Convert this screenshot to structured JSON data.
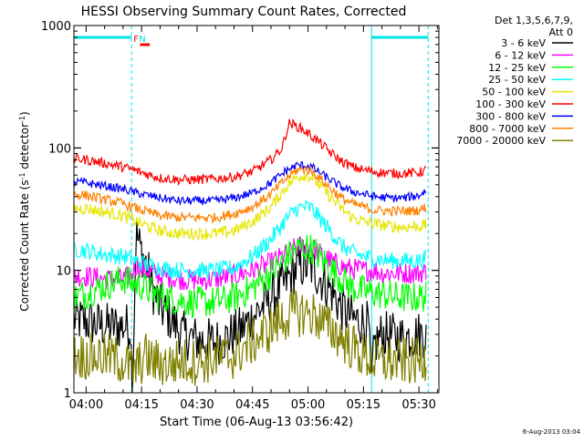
{
  "chart_data": {
    "type": "line",
    "title": "HESSI Observing Summary Count Rates, Corrected",
    "xlabel": "Start Time (06-Aug-13 03:56:42)",
    "ylabel_main": "Corrected Count Rate (s",
    "ylabel_sup1": "-1",
    "ylabel_mid": " detector",
    "ylabel_sup2": "-1",
    "ylabel_end": ")",
    "yscale": "log",
    "ylim": [
      1,
      1000
    ],
    "xlim_minutes": [
      236.7,
      335.4
    ],
    "x_ticks": [
      {
        "minutes": 240,
        "label": "04:00"
      },
      {
        "minutes": 255,
        "label": "04:15"
      },
      {
        "minutes": 270,
        "label": "04:30"
      },
      {
        "minutes": 285,
        "label": "04:45"
      },
      {
        "minutes": 300,
        "label": "05:00"
      },
      {
        "minutes": 315,
        "label": "05:15"
      },
      {
        "minutes": 330,
        "label": "05:30"
      }
    ],
    "y_ticks": [
      {
        "value": 1,
        "label": "1"
      },
      {
        "value": 10,
        "label": "10"
      },
      {
        "value": 100,
        "label": "100"
      },
      {
        "value": 1000,
        "label": "1000"
      }
    ],
    "legend_header": [
      "Det 1,3,5,6,7,9,",
      "Att 0"
    ],
    "legend_position": "right",
    "timestamp": "6-Aug-2013 03:04",
    "flags": {
      "night_intervals": [
        [
          236.7,
          252.3
        ],
        [
          317.2,
          332.5
        ]
      ],
      "flag_labels": [
        {
          "text": "F",
          "minutes": 253.5,
          "color": "#ff0000"
        },
        {
          "text": "N",
          "minutes": 255.2,
          "color": "#00e5e5"
        }
      ],
      "saa_bar": [
        254.6,
        257.2
      ]
    },
    "series": [
      {
        "name": "3 - 6 keV",
        "color": "#000000",
        "points": [
          [
            236.7,
            4
          ],
          [
            240,
            3.8
          ],
          [
            245,
            3.5
          ],
          [
            250,
            3.5
          ],
          [
            252,
            3.5
          ],
          [
            252.5,
            1
          ],
          [
            253.5,
            20
          ],
          [
            255,
            14
          ],
          [
            256,
            12
          ],
          [
            258,
            7
          ],
          [
            260,
            5
          ],
          [
            263,
            4
          ],
          [
            266,
            3
          ],
          [
            270,
            2.7
          ],
          [
            275,
            2.6
          ],
          [
            278,
            2.8
          ],
          [
            282,
            3.3
          ],
          [
            286,
            4.5
          ],
          [
            290,
            6
          ],
          [
            294,
            8
          ],
          [
            297,
            10.5
          ],
          [
            299,
            11
          ],
          [
            301,
            10.5
          ],
          [
            303,
            9
          ],
          [
            306,
            7
          ],
          [
            309,
            5
          ],
          [
            312,
            4
          ],
          [
            315,
            3.8
          ],
          [
            316.5,
            3.5
          ],
          [
            317,
            1
          ],
          [
            318,
            2.5
          ],
          [
            320,
            3
          ],
          [
            325,
            2.8
          ],
          [
            330,
            3
          ],
          [
            332,
            3
          ]
        ],
        "noise": 0.2
      },
      {
        "name": "6 - 12 keV",
        "color": "#ff00ff",
        "points": [
          [
            236.7,
            9
          ],
          [
            240,
            9
          ],
          [
            245,
            8.5
          ],
          [
            250,
            8.5
          ],
          [
            252,
            9
          ],
          [
            253.5,
            11
          ],
          [
            256,
            10
          ],
          [
            260,
            9
          ],
          [
            265,
            8.5
          ],
          [
            270,
            8.3
          ],
          [
            275,
            8.5
          ],
          [
            280,
            9
          ],
          [
            285,
            10
          ],
          [
            290,
            11.5
          ],
          [
            294,
            13.5
          ],
          [
            297,
            15.5
          ],
          [
            299,
            16
          ],
          [
            301,
            15.5
          ],
          [
            303,
            14
          ],
          [
            306,
            12
          ],
          [
            310,
            10.5
          ],
          [
            315,
            10
          ],
          [
            318,
            10
          ],
          [
            320,
            9.5
          ],
          [
            325,
            9.5
          ],
          [
            330,
            9.5
          ],
          [
            332,
            9.8
          ]
        ],
        "noise": 0.09
      },
      {
        "name": "12 - 25 keV",
        "color": "#00ff00",
        "points": [
          [
            236.7,
            6
          ],
          [
            240,
            6.5
          ],
          [
            245,
            7.5
          ],
          [
            250,
            8.5
          ],
          [
            252,
            8
          ],
          [
            255,
            7.5
          ],
          [
            258,
            6.5
          ],
          [
            262,
            6
          ],
          [
            266,
            5.6
          ],
          [
            270,
            5.5
          ],
          [
            275,
            5.5
          ],
          [
            280,
            6
          ],
          [
            285,
            7.2
          ],
          [
            290,
            9.5
          ],
          [
            294,
            12.5
          ],
          [
            297,
            15
          ],
          [
            299,
            15.5
          ],
          [
            301,
            15
          ],
          [
            303,
            13
          ],
          [
            306,
            10.5
          ],
          [
            309,
            8.5
          ],
          [
            312,
            7.2
          ],
          [
            315,
            6.8
          ],
          [
            318,
            6.5
          ],
          [
            322,
            6.2
          ],
          [
            326,
            6
          ],
          [
            330,
            6
          ],
          [
            332,
            6.2
          ]
        ],
        "noise": 0.13
      },
      {
        "name": "25 - 50 keV",
        "color": "#00ffff",
        "points": [
          [
            236.7,
            15
          ],
          [
            240,
            14.5
          ],
          [
            245,
            13.5
          ],
          [
            250,
            13
          ],
          [
            255,
            11.5
          ],
          [
            260,
            10.5
          ],
          [
            265,
            10
          ],
          [
            270,
            10
          ],
          [
            275,
            10
          ],
          [
            280,
            10.5
          ],
          [
            285,
            13
          ],
          [
            290,
            18
          ],
          [
            294,
            26
          ],
          [
            297,
            32
          ],
          [
            299,
            33
          ],
          [
            301,
            32
          ],
          [
            303,
            27
          ],
          [
            306,
            21
          ],
          [
            309,
            16
          ],
          [
            312,
            14
          ],
          [
            315,
            13
          ],
          [
            318,
            12.5
          ],
          [
            322,
            12
          ],
          [
            326,
            12
          ],
          [
            330,
            12
          ],
          [
            332,
            12.5
          ]
        ],
        "noise": 0.07
      },
      {
        "name": "50 - 100 keV",
        "color": "#e6e600",
        "points": [
          [
            236.7,
            32
          ],
          [
            240,
            32
          ],
          [
            245,
            30
          ],
          [
            250,
            28
          ],
          [
            255,
            24
          ],
          [
            260,
            21
          ],
          [
            265,
            20
          ],
          [
            270,
            20
          ],
          [
            275,
            20
          ],
          [
            280,
            21
          ],
          [
            285,
            25
          ],
          [
            290,
            33
          ],
          [
            294,
            48
          ],
          [
            297,
            58
          ],
          [
            299,
            60
          ],
          [
            301,
            58
          ],
          [
            303,
            50
          ],
          [
            306,
            40
          ],
          [
            309,
            32
          ],
          [
            312,
            27
          ],
          [
            315,
            25
          ],
          [
            318,
            24
          ],
          [
            322,
            23
          ],
          [
            326,
            22.5
          ],
          [
            330,
            23
          ],
          [
            332,
            23.5
          ]
        ],
        "noise": 0.05
      },
      {
        "name": "100 - 300 keV",
        "color": "#ff0000",
        "points": [
          [
            236.7,
            82
          ],
          [
            240,
            80
          ],
          [
            245,
            75
          ],
          [
            250,
            70
          ],
          [
            255,
            63
          ],
          [
            260,
            57
          ],
          [
            265,
            55
          ],
          [
            270,
            55
          ],
          [
            275,
            56
          ],
          [
            280,
            58
          ],
          [
            285,
            64
          ],
          [
            290,
            80
          ],
          [
            293,
            100
          ],
          [
            294,
            130
          ],
          [
            295,
            160
          ],
          [
            296,
            155
          ],
          [
            298,
            145
          ],
          [
            300,
            132
          ],
          [
            303,
            112
          ],
          [
            306,
            92
          ],
          [
            309,
            78
          ],
          [
            312,
            70
          ],
          [
            315,
            66
          ],
          [
            318,
            64
          ],
          [
            322,
            62
          ],
          [
            326,
            62
          ],
          [
            330,
            63
          ],
          [
            332,
            66
          ]
        ],
        "noise": 0.04
      },
      {
        "name": "300 - 800 keV",
        "color": "#0000ff",
        "points": [
          [
            236.7,
            53
          ],
          [
            240,
            52
          ],
          [
            245,
            49
          ],
          [
            250,
            46
          ],
          [
            255,
            42
          ],
          [
            260,
            39
          ],
          [
            265,
            37
          ],
          [
            270,
            37
          ],
          [
            275,
            37
          ],
          [
            280,
            39
          ],
          [
            285,
            43
          ],
          [
            290,
            52
          ],
          [
            294,
            65
          ],
          [
            297,
            72
          ],
          [
            299,
            72
          ],
          [
            301,
            70
          ],
          [
            303,
            63
          ],
          [
            306,
            55
          ],
          [
            309,
            48
          ],
          [
            312,
            44
          ],
          [
            315,
            42
          ],
          [
            318,
            40
          ],
          [
            322,
            39
          ],
          [
            326,
            39
          ],
          [
            330,
            41
          ],
          [
            332,
            45
          ]
        ],
        "noise": 0.035
      },
      {
        "name": "800 - 7000 keV",
        "color": "#ff8000",
        "points": [
          [
            236.7,
            42
          ],
          [
            240,
            41
          ],
          [
            245,
            38
          ],
          [
            250,
            35
          ],
          [
            255,
            31
          ],
          [
            260,
            28
          ],
          [
            265,
            27
          ],
          [
            270,
            27
          ],
          [
            275,
            27
          ],
          [
            280,
            29
          ],
          [
            285,
            33
          ],
          [
            290,
            42
          ],
          [
            294,
            56
          ],
          [
            297,
            66
          ],
          [
            299,
            67
          ],
          [
            301,
            65
          ],
          [
            303,
            57
          ],
          [
            306,
            47
          ],
          [
            309,
            39
          ],
          [
            312,
            35
          ],
          [
            315,
            33
          ],
          [
            318,
            31
          ],
          [
            322,
            30.5
          ],
          [
            326,
            30.5
          ],
          [
            330,
            31
          ],
          [
            332,
            33
          ]
        ],
        "noise": 0.04
      },
      {
        "name": "7000 - 20000 keV",
        "color": "#808000",
        "points": [
          [
            236.7,
            2
          ],
          [
            240,
            2
          ],
          [
            245,
            2
          ],
          [
            250,
            1.8
          ],
          [
            253,
            1.5
          ],
          [
            256,
            2
          ],
          [
            258,
            1.8
          ],
          [
            262,
            1.7
          ],
          [
            266,
            1.8
          ],
          [
            270,
            1.8
          ],
          [
            275,
            1.9
          ],
          [
            280,
            2
          ],
          [
            284,
            2.5
          ],
          [
            288,
            3
          ],
          [
            292,
            3.8
          ],
          [
            296,
            4.5
          ],
          [
            299,
            4.5
          ],
          [
            302,
            4.3
          ],
          [
            305,
            3.5
          ],
          [
            308,
            3
          ],
          [
            311,
            2.5
          ],
          [
            315,
            2
          ],
          [
            318,
            1.8
          ],
          [
            322,
            1.8
          ],
          [
            326,
            1.8
          ],
          [
            330,
            1.8
          ],
          [
            332,
            2
          ]
        ],
        "noise": 0.2
      }
    ]
  }
}
